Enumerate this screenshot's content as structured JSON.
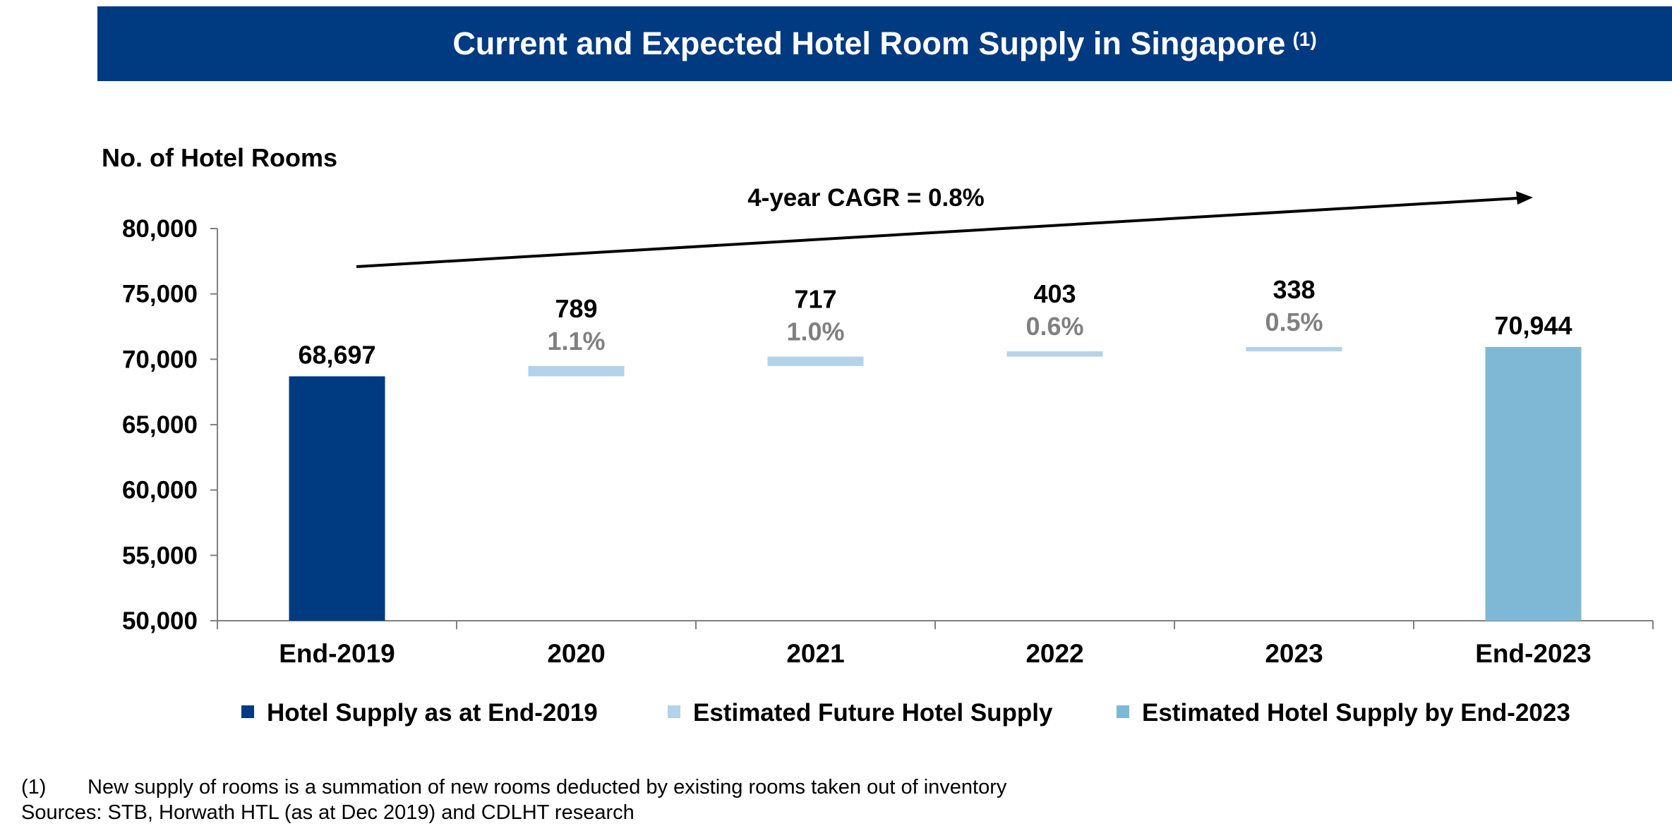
{
  "title": "Current and Expected Hotel Room Supply in Singapore",
  "title_note": "(1)",
  "colors": {
    "title_bg": "#003A80",
    "current_supply": "#003A80",
    "future_supply": "#B4D2EA",
    "end_supply": "#7FB8D4",
    "growth_text": "#808080"
  },
  "chart_data": {
    "type": "bar",
    "ylabel": "No. of Hotel Rooms",
    "ylim": [
      50000,
      80000
    ],
    "yticks": [
      50000,
      55000,
      60000,
      65000,
      70000,
      75000,
      80000
    ],
    "ytick_labels": [
      "50,000",
      "55,000",
      "60,000",
      "65,000",
      "70,000",
      "75,000",
      "80,000"
    ],
    "categories": [
      "End-2019",
      "2020",
      "2021",
      "2022",
      "2023",
      "End-2023"
    ],
    "series": [
      {
        "name": "Hotel Supply as at End-2019",
        "kind": "total",
        "values": [
          68697,
          null,
          null,
          null,
          null,
          null
        ],
        "labels": [
          "68,697",
          null,
          null,
          null,
          null,
          null
        ]
      },
      {
        "name": "Estimated Future Hotel Supply",
        "kind": "increment",
        "base": [
          null,
          68697,
          69486,
          70203,
          70606,
          null
        ],
        "values": [
          null,
          789,
          717,
          403,
          338,
          null
        ],
        "labels": [
          null,
          "789",
          "717",
          "403",
          "338",
          null
        ],
        "growth_labels": [
          null,
          "1.1%",
          "1.0%",
          "0.6%",
          "0.5%",
          null
        ]
      },
      {
        "name": "Estimated Hotel Supply by End-2023",
        "kind": "total",
        "values": [
          null,
          null,
          null,
          null,
          null,
          70944
        ],
        "labels": [
          null,
          null,
          null,
          null,
          null,
          "70,944"
        ]
      }
    ],
    "annotation": "4-year CAGR = 0.8%",
    "legend_position": "bottom",
    "grid": false
  },
  "footnotes": {
    "note_mark": "(1)",
    "note_text": "New supply of rooms is a summation of new rooms deducted by existing rooms taken out of inventory",
    "sources": "Sources: STB, Horwath HTL (as at Dec 2019) and CDLHT research"
  }
}
